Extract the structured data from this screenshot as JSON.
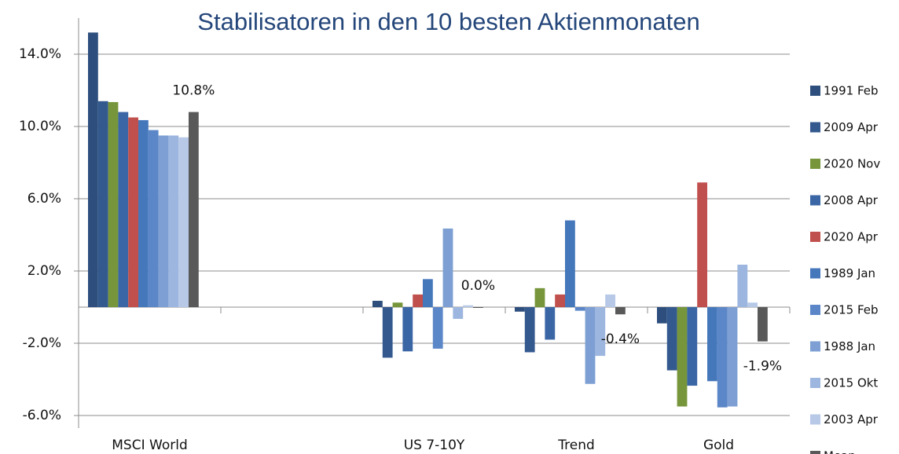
{
  "chart_data": {
    "type": "bar",
    "title": "Stabilisatoren in den 10 besten Aktienmonaten",
    "categories": [
      "MSCI World",
      null,
      "US 7-10Y",
      "Trend",
      "Gold"
    ],
    "series": [
      {
        "name": "1991 Feb",
        "color": "#2e4f7e",
        "values": [
          15.2,
          null,
          0.35,
          -0.25,
          -0.9
        ]
      },
      {
        "name": "2009 Apr",
        "color": "#34598f",
        "values": [
          11.4,
          null,
          -2.8,
          -2.5,
          -3.5
        ]
      },
      {
        "name": "2020 Nov",
        "color": "#77963b",
        "values": [
          11.35,
          null,
          0.25,
          1.05,
          -5.5
        ]
      },
      {
        "name": "2008 Apr",
        "color": "#3a66a5",
        "values": [
          10.8,
          null,
          -2.45,
          -1.8,
          -4.35
        ]
      },
      {
        "name": "2020 Apr",
        "color": "#c0504d",
        "values": [
          10.5,
          null,
          0.7,
          0.7,
          6.9
        ]
      },
      {
        "name": "1989 Jan",
        "color": "#4577bb",
        "values": [
          10.35,
          null,
          1.55,
          4.8,
          -4.1
        ]
      },
      {
        "name": "2015 Feb",
        "color": "#5b86c7",
        "values": [
          9.8,
          null,
          -2.3,
          -0.2,
          -5.55
        ]
      },
      {
        "name": "1988 Jan",
        "color": "#7d9fd3",
        "values": [
          9.5,
          null,
          4.35,
          -4.25,
          -5.5
        ]
      },
      {
        "name": "2015 Okt",
        "color": "#9db6df",
        "values": [
          9.5,
          null,
          -0.65,
          -2.7,
          2.35
        ]
      },
      {
        "name": "2003 Apr",
        "color": "#b7c9e7",
        "values": [
          9.4,
          null,
          0.1,
          0.7,
          0.25
        ]
      },
      {
        "name": "Mean",
        "color": "#595959",
        "values": [
          10.8,
          null,
          0.0,
          -0.4,
          -1.9
        ],
        "value_labels": [
          "10.8%",
          null,
          "0.0%",
          "-0.4%",
          "-1.9%"
        ]
      }
    ],
    "ylim": [
      -6,
      16
    ],
    "yticks": [
      {
        "value": -6,
        "label": "-6.0%"
      },
      {
        "value": -2,
        "label": "-2.0%"
      },
      {
        "value": 2,
        "label": "2.0%"
      },
      {
        "value": 6,
        "label": "6.0%"
      },
      {
        "value": 10,
        "label": "10.0%"
      },
      {
        "value": 14,
        "label": "14.0%"
      }
    ],
    "grid": true
  }
}
